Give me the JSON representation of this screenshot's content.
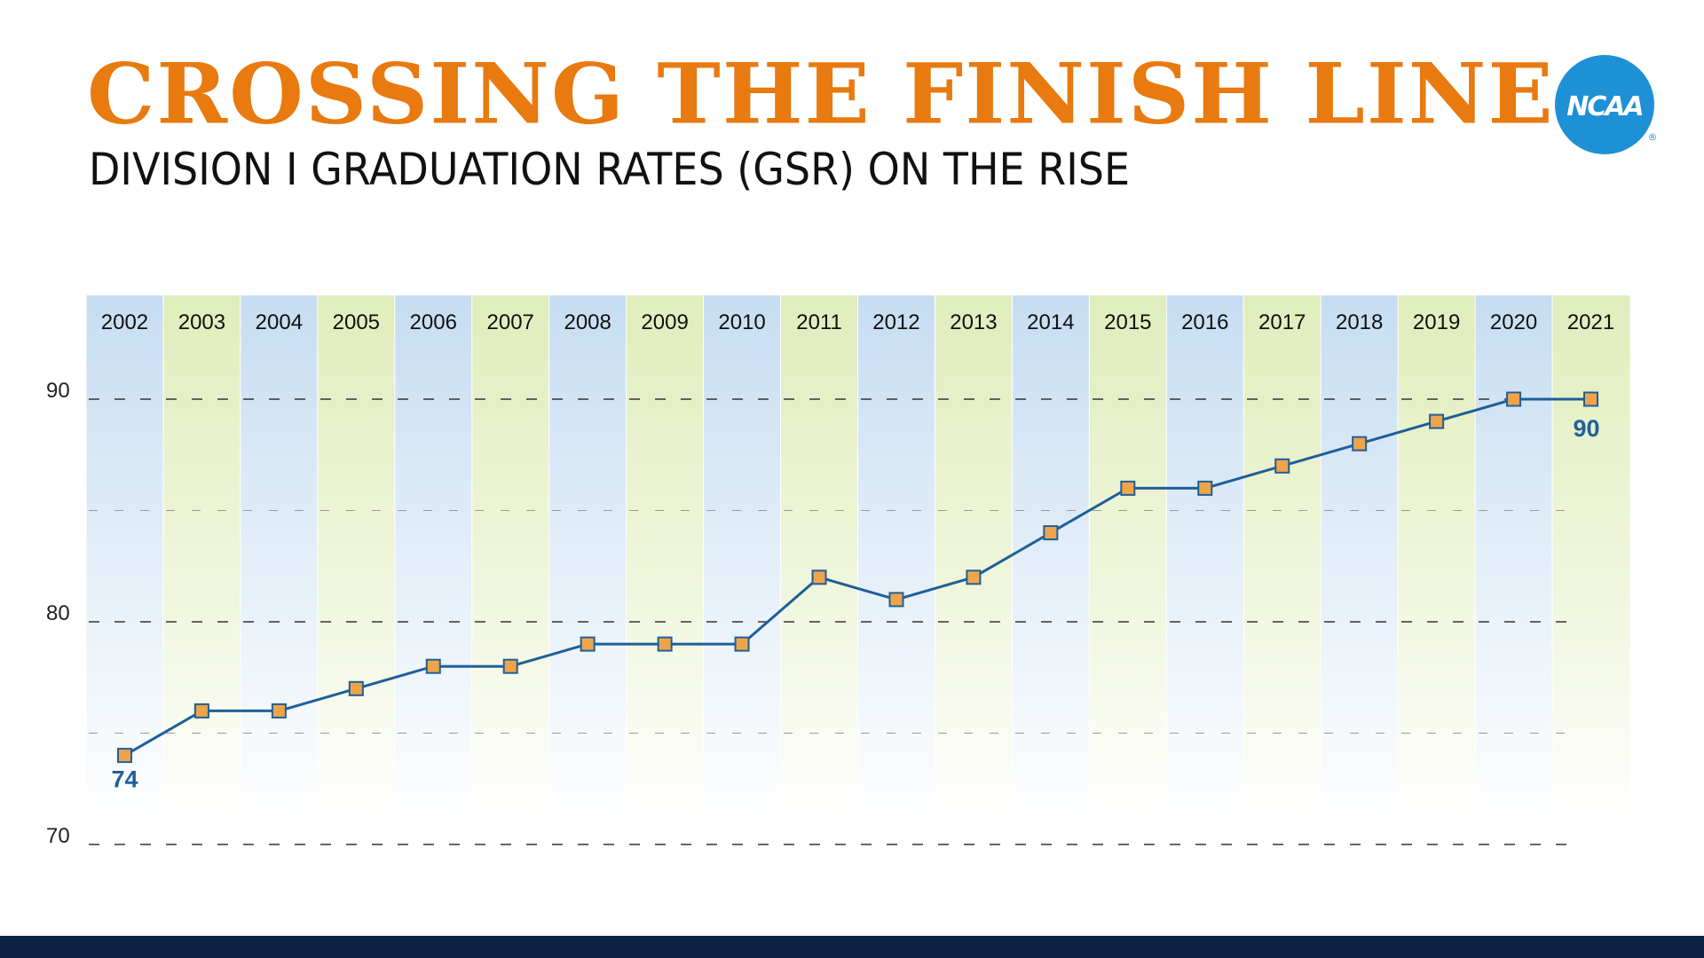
{
  "header": {
    "title": "CROSSING THE FINISH LINE",
    "subtitle": "DIVISION I GRADUATION RATES (GSR) ON THE RISE"
  },
  "logo": {
    "text": "NCAA",
    "icon": "ncaa-logo-icon",
    "color": "#1e90d6",
    "registered": "®"
  },
  "colors": {
    "title": "#e87a10",
    "line": "#1f5f99",
    "marker_fill": "#f0a44a",
    "marker_stroke": "#1f5f99",
    "band_blue": "#c9e0f3",
    "band_green": "#e3efc3",
    "footer": "#0b2245",
    "label": "#1f5f99"
  },
  "chart_data": {
    "type": "line",
    "x": [
      "2002",
      "2003",
      "2004",
      "2005",
      "2006",
      "2007",
      "2008",
      "2009",
      "2010",
      "2011",
      "2012",
      "2013",
      "2014",
      "2015",
      "2016",
      "2017",
      "2018",
      "2019",
      "2020",
      "2021"
    ],
    "series": [
      {
        "values": [
          74,
          76,
          76,
          77,
          78,
          78,
          79,
          79,
          79,
          82,
          81,
          82,
          84,
          86,
          86,
          87,
          88,
          89,
          90,
          90
        ]
      }
    ],
    "data_labels": [
      {
        "year": "2002",
        "text": "74"
      },
      {
        "year": "2021",
        "text": "90"
      }
    ],
    "yticks": [
      "70",
      "80",
      "90"
    ],
    "ylim": [
      70,
      94.5
    ],
    "grid": true,
    "xlabel": "",
    "ylabel": ""
  }
}
